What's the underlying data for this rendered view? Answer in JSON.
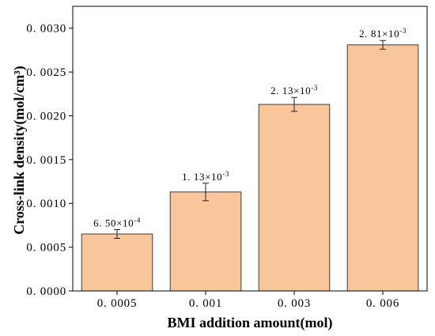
{
  "chart_data": {
    "type": "bar",
    "categories": [
      "0. 0005",
      "0. 001",
      "0. 003",
      "0. 006"
    ],
    "values": [
      0.00065,
      0.00113,
      0.00213,
      0.00281
    ],
    "errors": [
      5e-05,
      0.0001,
      8e-05,
      5e-05
    ],
    "data_labels": [
      {
        "base": "6. 50×10",
        "exp": "-4"
      },
      {
        "base": "1. 13×10",
        "exp": "-3"
      },
      {
        "base": "2. 13×10",
        "exp": "-3"
      },
      {
        "base": "2. 81×10",
        "exp": "-3"
      }
    ],
    "xlabel": "BMI addition amount(mol)",
    "ylabel": "Cross-link density(mol/cm³)",
    "ylim": [
      0,
      0.00325
    ],
    "yticks": [
      0,
      0.0005,
      0.001,
      0.0015,
      0.002,
      0.0025,
      0.003
    ],
    "ytick_labels": [
      "0. 0000",
      "0. 0005",
      "0. 0010",
      "0. 0015",
      "0. 0020",
      "0. 0025",
      "0. 0030"
    ],
    "grid": false,
    "legend": false,
    "colors": {
      "bar_fill": "#F8C69A",
      "bar_edge": "#3C3C3C",
      "axis": "#000000",
      "error_bar": "#222222"
    }
  }
}
